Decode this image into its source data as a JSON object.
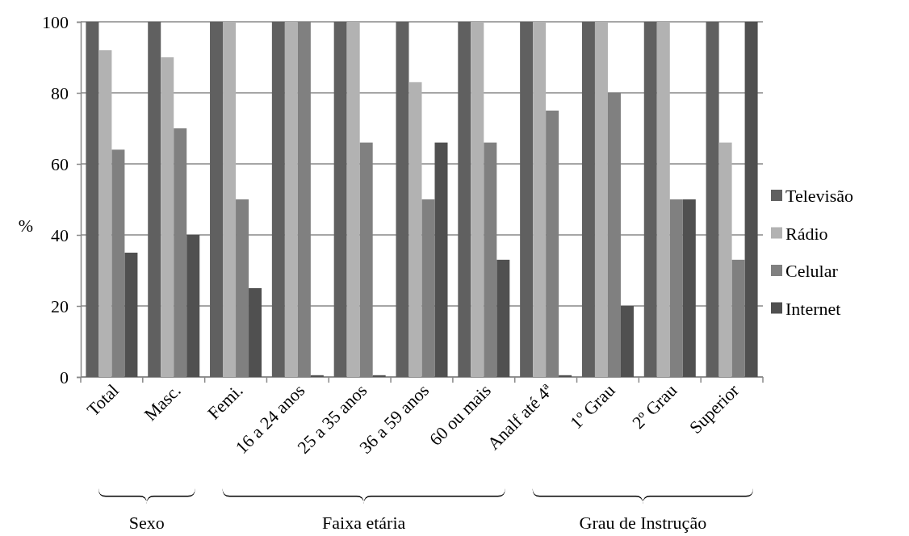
{
  "chart_data": {
    "type": "bar",
    "ylabel": "%",
    "categories": [
      "Total",
      "Masc.",
      "Femi.",
      "16 a 24 anos",
      "25 a 35 anos",
      "36 a 59 anos",
      "60 ou mais",
      "Analf até 4ª",
      "1º Grau",
      "2º Grau",
      "Superior"
    ],
    "series": [
      {
        "name": "Televisão",
        "color": "#606060",
        "values": [
          100,
          100,
          100,
          100,
          100,
          100,
          100,
          100,
          100,
          100,
          100
        ]
      },
      {
        "name": "Rádio",
        "color": "#b2b2b2",
        "values": [
          92,
          90,
          100,
          100,
          100,
          83,
          100,
          100,
          100,
          100,
          66
        ]
      },
      {
        "name": "Celular",
        "color": "#808080",
        "values": [
          64,
          70,
          50,
          100,
          66,
          50,
          66,
          75,
          80,
          50,
          33
        ]
      },
      {
        "name": "Internet",
        "color": "#505050",
        "values": [
          35,
          40,
          25,
          0.5,
          0.5,
          66,
          33,
          0.5,
          20,
          50,
          100
        ]
      }
    ],
    "ylim": [
      0,
      100
    ],
    "yticks": [
      0,
      20,
      40,
      60,
      80,
      100
    ],
    "grid": "y",
    "legend": "right",
    "annotations": [
      "Sexo",
      "Faixa etária",
      "Grau de Instrução"
    ]
  }
}
